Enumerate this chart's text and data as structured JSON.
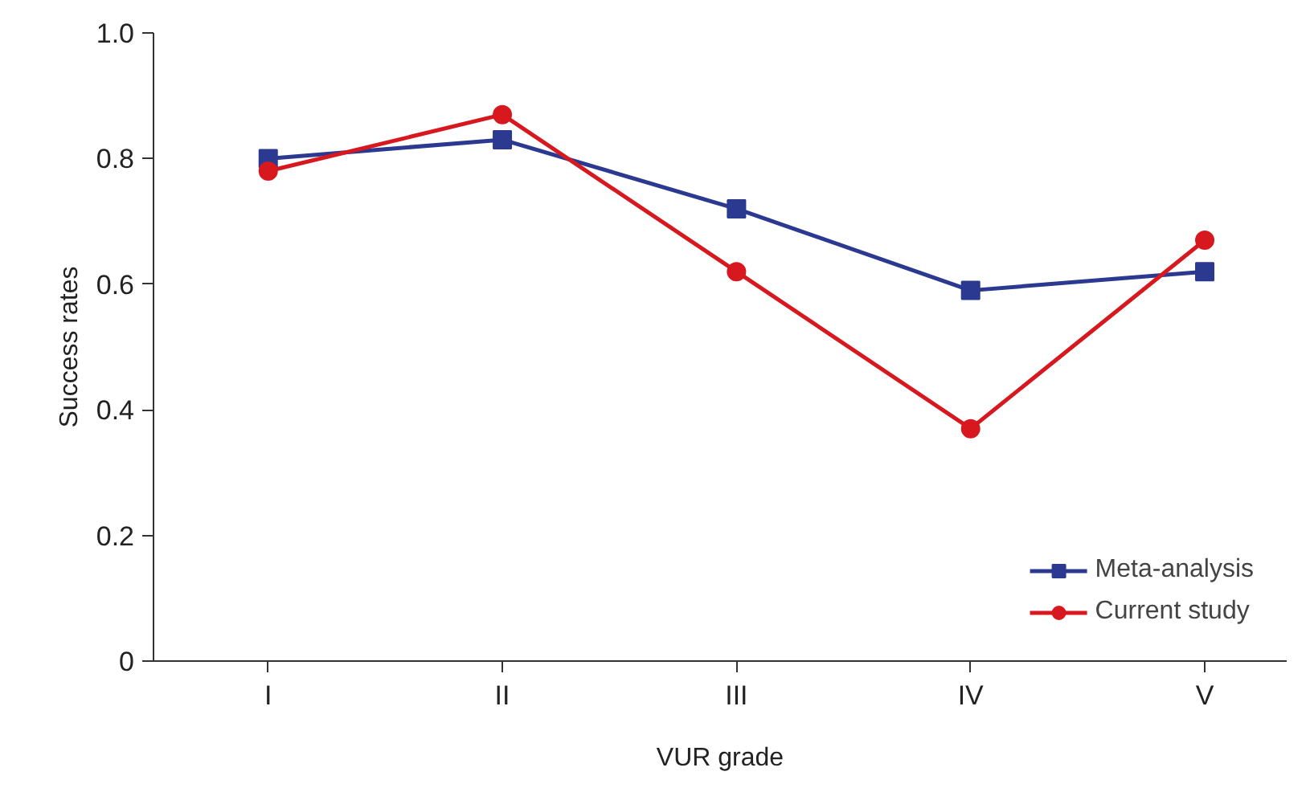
{
  "chart_data": {
    "type": "line",
    "xlabel": "VUR grade",
    "ylabel": "Success rates",
    "categories": [
      "I",
      "II",
      "III",
      "IV",
      "V"
    ],
    "series": [
      {
        "name": "Meta-analysis",
        "color": "#2b3990",
        "marker": "square",
        "values": [
          0.8,
          0.83,
          0.72,
          0.59,
          0.62
        ]
      },
      {
        "name": "Current study",
        "color": "#d7191f",
        "marker": "circle",
        "values": [
          0.78,
          0.87,
          0.62,
          0.37,
          0.67
        ]
      }
    ],
    "ylim": [
      0,
      1.0
    ],
    "yticks": [
      0,
      {
        "value": 0.2,
        "label": "0.2"
      },
      {
        "value": 0.4,
        "label": "0.4"
      },
      {
        "value": 0.6,
        "label": "0.6"
      },
      {
        "value": 0.8,
        "label": "0.8"
      },
      {
        "value": 1.0,
        "label": "1.0"
      }
    ],
    "grid": false,
    "legend": "bottom right",
    "line_style": "solid"
  }
}
